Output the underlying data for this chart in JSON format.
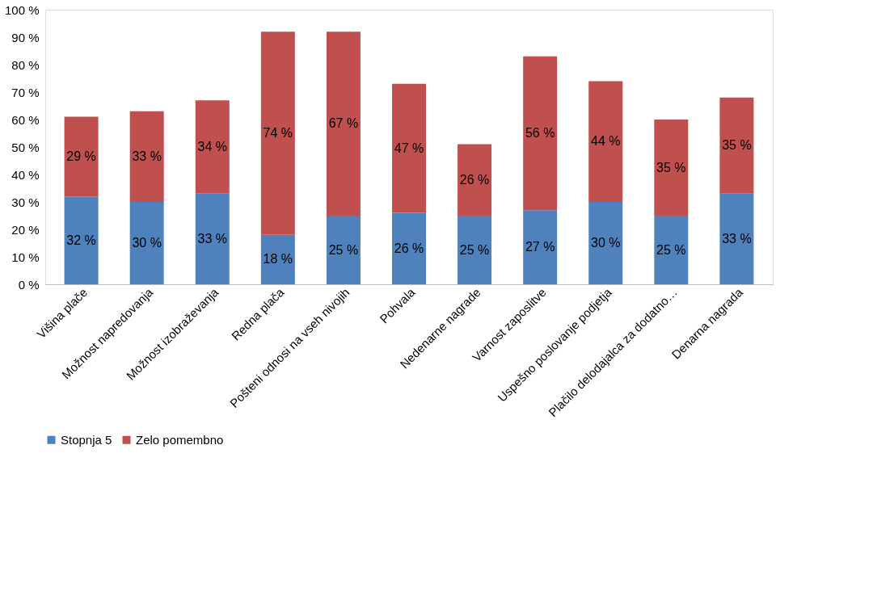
{
  "chart_data": {
    "type": "bar",
    "stacked": true,
    "categories": [
      "Višina plače",
      "Možnost napredovanja",
      "Možnost izobraževanja",
      "Redna plača",
      "Pošteni odnosi na vseh nivojih",
      "Pohvala",
      "Nedenarne nagrade",
      "Varnost zaposlitve",
      "Uspešno poslovanje podjetja",
      "Plačilo delodajalca za dodatno…",
      "Denarna nagrada"
    ],
    "series": [
      {
        "name": "Stopnja 5",
        "color": "#4f81bd",
        "values": [
          32,
          30,
          33,
          18,
          25,
          26,
          25,
          27,
          30,
          25,
          33
        ],
        "value_labels": [
          "32 %",
          "30 %",
          "33 %",
          "18 %",
          "25 %",
          "26 %",
          "25 %",
          "27 %",
          "30 %",
          "25 %",
          "33 %"
        ]
      },
      {
        "name": "Zelo pomembno",
        "color": "#c0504d",
        "values": [
          29,
          33,
          34,
          74,
          67,
          47,
          26,
          56,
          44,
          35,
          35
        ],
        "value_labels": [
          "29 %",
          "33 %",
          "34 %",
          "74 %",
          "67 %",
          "47 %",
          "26 %",
          "56 %",
          "44 %",
          "35 %",
          "35 %"
        ]
      }
    ],
    "ylim": [
      0,
      100
    ],
    "yticks": [
      {
        "value": 0,
        "label": "0 %"
      },
      {
        "value": 10,
        "label": "10 %"
      },
      {
        "value": 20,
        "label": "20 %"
      },
      {
        "value": 30,
        "label": "30 %"
      },
      {
        "value": 40,
        "label": "40 %"
      },
      {
        "value": 50,
        "label": "50 %"
      },
      {
        "value": 60,
        "label": "60 %"
      },
      {
        "value": 70,
        "label": "70 %"
      },
      {
        "value": 80,
        "label": "80 %"
      },
      {
        "value": 90,
        "label": "90 %"
      },
      {
        "value": 100,
        "label": "100 %"
      }
    ],
    "grid": false,
    "legend": "bottom"
  }
}
